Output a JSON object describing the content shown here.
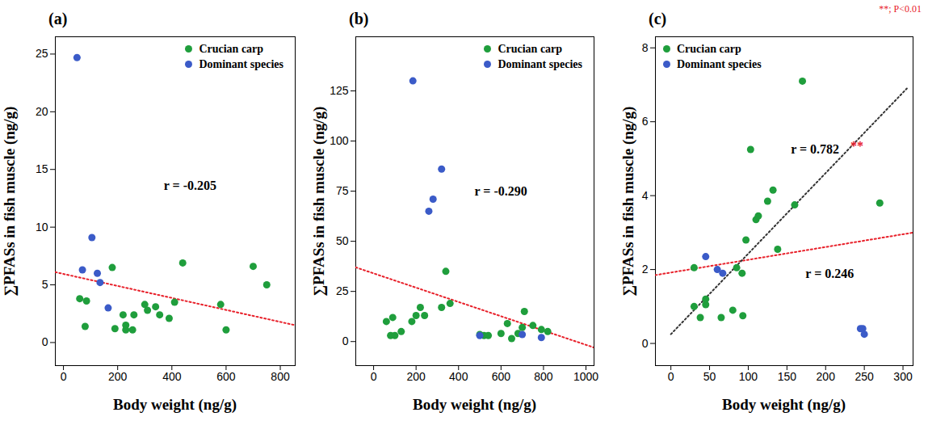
{
  "chart_data": [
    {
      "type": "scatter",
      "title": "(a)",
      "xlabel": "Body weight (ng/g)",
      "ylabel": "∑PFASs in fish muscle (ng/g)",
      "xlim": [
        -30,
        855
      ],
      "ylim": [
        -2,
        26.5
      ],
      "xticks": [
        0,
        200,
        400,
        600,
        800
      ],
      "yticks": [
        0,
        5,
        10,
        15,
        20,
        25
      ],
      "legend": "top-right",
      "series": [
        {
          "name": "Crucian carp",
          "color": "#1f9e3c",
          "marker": "circle",
          "x": [
            60,
            85,
            80,
            180,
            190,
            220,
            230,
            230,
            255,
            260,
            300,
            310,
            340,
            355,
            390,
            410,
            440,
            580,
            600,
            700,
            750
          ],
          "values": [
            3.8,
            3.6,
            1.4,
            6.5,
            1.2,
            2.4,
            1.1,
            1.5,
            1.1,
            2.4,
            3.3,
            2.8,
            3.1,
            2.4,
            2.1,
            3.5,
            6.9,
            3.3,
            1.1,
            6.6,
            5.0
          ]
        },
        {
          "name": "Dominant species",
          "color": "#3b5bc8",
          "marker": "circle",
          "x": [
            50,
            70,
            105,
            125,
            135,
            165
          ],
          "values": [
            24.7,
            6.3,
            9.1,
            6.0,
            5.2,
            3.0
          ]
        }
      ],
      "trend_lines": [
        {
          "color": "#e8202a",
          "line_style": "dotted",
          "x": [
            -30,
            855
          ],
          "values": [
            6.1,
            1.5
          ]
        }
      ],
      "annotations": [
        {
          "text": "r = -0.205",
          "x": 370,
          "y": 13.6,
          "color": "#000000"
        }
      ]
    },
    {
      "type": "scatter",
      "title": "(b)",
      "xlabel": "Body weight (ng/g)",
      "ylabel": "∑PFASs in fish muscle (ng/g)",
      "xlim": [
        -84,
        1038
      ],
      "ylim": [
        -12,
        152
      ],
      "xticks": [
        0,
        200,
        400,
        600,
        800,
        1000
      ],
      "yticks": [
        0,
        25,
        50,
        75,
        100,
        125
      ],
      "legend": "top-right",
      "series": [
        {
          "name": "Crucian carp",
          "color": "#1f9e3c",
          "marker": "circle",
          "x": [
            60,
            80,
            90,
            100,
            130,
            180,
            200,
            220,
            240,
            320,
            340,
            360,
            500,
            520,
            540,
            600,
            630,
            650,
            680,
            700,
            710,
            750,
            790,
            820
          ],
          "values": [
            10,
            3,
            12,
            3,
            5,
            10,
            13,
            17,
            13,
            17,
            35,
            19,
            3.5,
            3,
            3,
            4,
            9,
            1.5,
            4,
            7,
            15,
            8,
            6,
            5
          ]
        },
        {
          "name": "Dominant species",
          "color": "#3b5bc8",
          "marker": "circle",
          "x": [
            185,
            260,
            280,
            320,
            500,
            700,
            790
          ],
          "values": [
            130,
            65,
            71,
            86,
            3,
            3.5,
            2
          ]
        }
      ],
      "trend_lines": [
        {
          "color": "#e8202a",
          "line_style": "dotted",
          "x": [
            -84,
            1038
          ],
          "values": [
            37,
            -3
          ]
        }
      ],
      "annotations": [
        {
          "text": "r = -0.290",
          "x": 475,
          "y": 75,
          "color": "#000000"
        }
      ]
    },
    {
      "type": "scatter",
      "title": "(c)",
      "xlabel": "Body weight (ng/g)",
      "ylabel": "∑PFASs in fish muscle (ng/g)",
      "xlim": [
        -20,
        313
      ],
      "ylim": [
        -0.6,
        8.3
      ],
      "xticks": [
        0,
        50,
        100,
        150,
        200,
        250,
        300
      ],
      "yticks": [
        0,
        2,
        4,
        6,
        8
      ],
      "legend": "top-left",
      "note": "**; P<0.01",
      "series": [
        {
          "name": "Crucian carp",
          "color": "#1f9e3c",
          "marker": "circle",
          "x": [
            30,
            30,
            38,
            45,
            45,
            65,
            80,
            85,
            92,
            93,
            97,
            103,
            110,
            113,
            125,
            132,
            138,
            160,
            170,
            270
          ],
          "values": [
            2.05,
            1.0,
            0.7,
            1.05,
            1.2,
            0.7,
            0.9,
            2.05,
            1.9,
            0.75,
            2.8,
            5.25,
            3.35,
            3.45,
            3.85,
            4.15,
            2.55,
            3.75,
            7.1,
            3.8
          ]
        },
        {
          "name": "Dominant species",
          "color": "#3b5bc8",
          "marker": "circle",
          "x": [
            45,
            60,
            67,
            245,
            248,
            250
          ],
          "values": [
            2.35,
            2.0,
            1.9,
            0.4,
            0.4,
            0.25
          ]
        }
      ],
      "trend_lines": [
        {
          "color": "#e8202a",
          "line_style": "dotted",
          "x": [
            -20,
            313
          ],
          "values": [
            1.85,
            3.0
          ]
        },
        {
          "color": "#333333",
          "line_style": "dotted",
          "x": [
            0,
            305
          ],
          "values": [
            0.25,
            6.9
          ]
        }
      ],
      "annotations": [
        {
          "text": "r = 0.782",
          "x": 155,
          "y": 5.25,
          "color": "#000000"
        },
        {
          "text": "**",
          "x": 232,
          "y": 5.35,
          "color": "#e8202a"
        },
        {
          "text": "r = 0.246",
          "x": 174,
          "y": 1.88,
          "color": "#000000"
        }
      ]
    }
  ]
}
